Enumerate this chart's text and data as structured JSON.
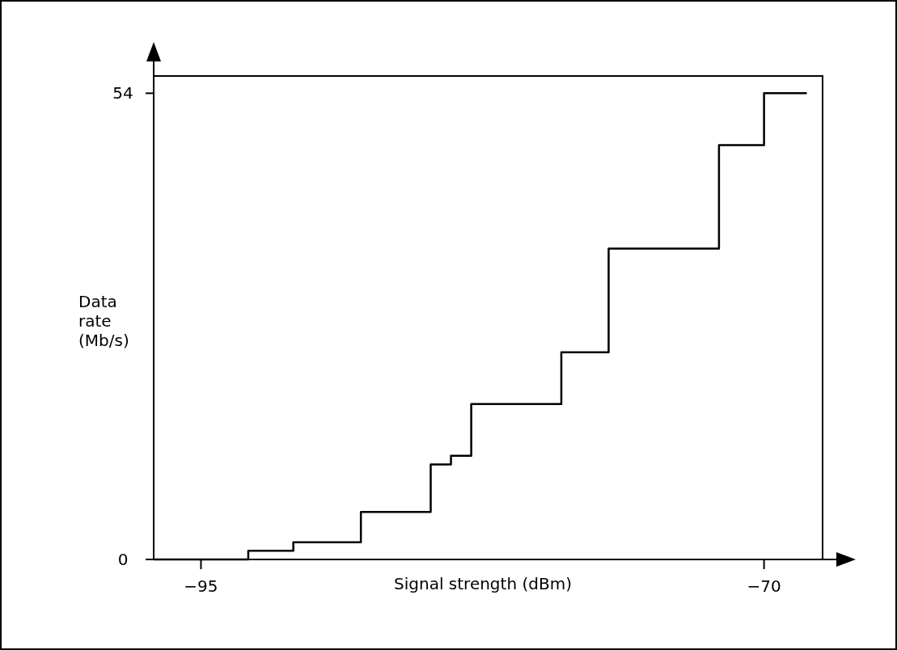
{
  "chart_data": {
    "type": "step",
    "xlabel": "Signal strength (dBm)",
    "ylabel": "Data rate (Mb/s)",
    "x": [
      -97.1,
      -92.9,
      -90.9,
      -87.9,
      -84.8,
      -83.9,
      -83.0,
      -79.0,
      -76.9,
      -72.0,
      -70.0,
      -68.1
    ],
    "series": [
      {
        "color": "#000000",
        "values": [
          0,
          1,
          2,
          5.5,
          11,
          12,
          18,
          24,
          36,
          48,
          54,
          54
        ]
      }
    ],
    "xlim": [
      -97.1,
      -67.4
    ],
    "ylim": [
      0,
      56
    ],
    "xticks": [
      {
        "value": -95,
        "label": "−95"
      },
      {
        "value": -70,
        "label": "−70"
      }
    ],
    "yticks": [
      0,
      54
    ],
    "grid": false,
    "marker": "none",
    "line_style": "solid"
  }
}
